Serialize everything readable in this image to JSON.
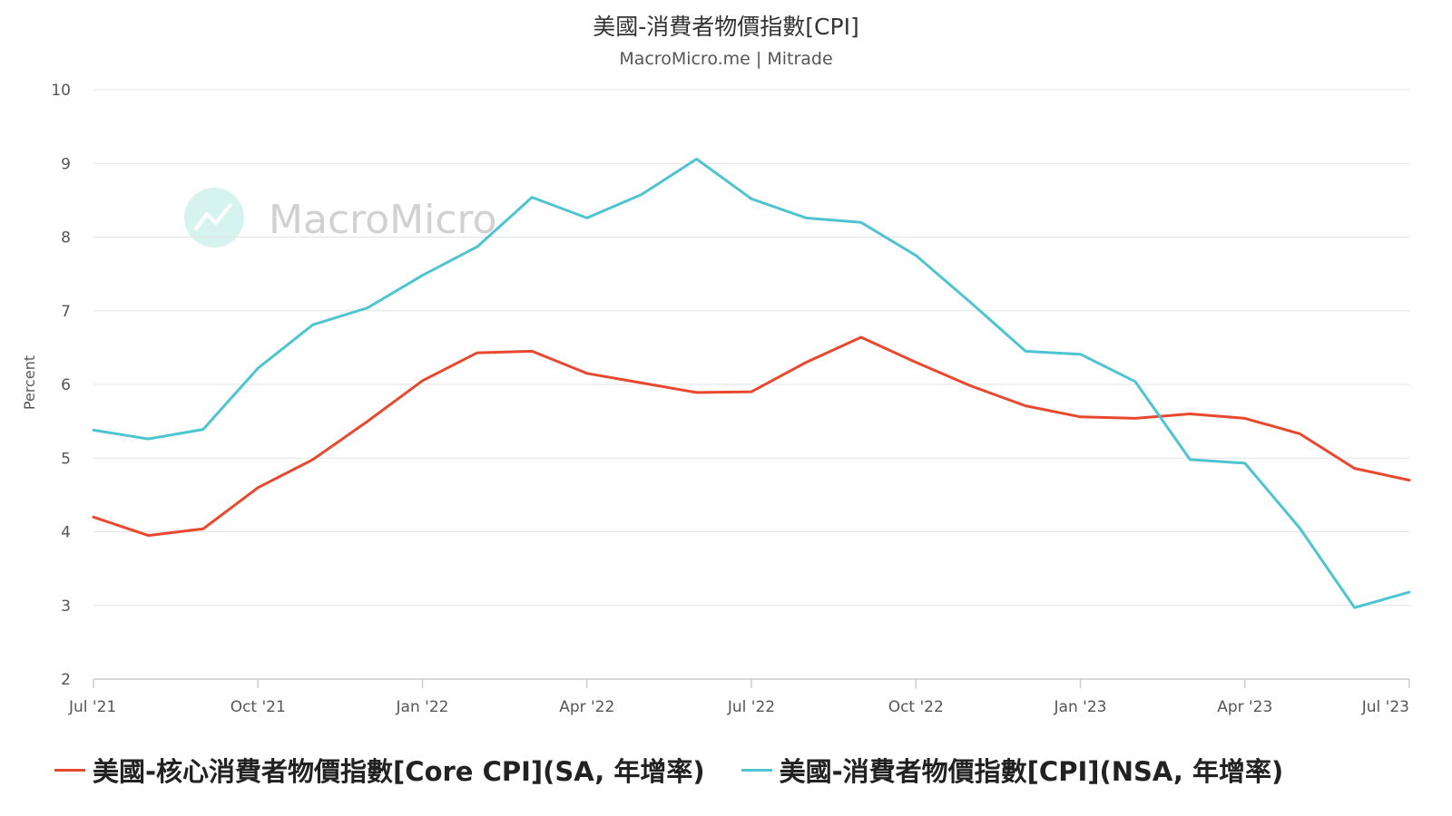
{
  "colors": {
    "core": "#e8492e",
    "cpi": "#4fc4d1",
    "grid": "#e3e3e3",
    "axis": "#cccccc",
    "text": "#555555"
  },
  "chart_data": {
    "type": "line",
    "title": "美國-消費者物價指數[CPI]",
    "subtitle": "MacroMicro.me | Mitrade",
    "watermark": "MacroMicro",
    "ylabel": "Percent",
    "ylim": [
      2,
      10
    ],
    "yticks": [
      "2",
      "3",
      "4",
      "5",
      "6",
      "7",
      "8",
      "9",
      "10"
    ],
    "xticks": [
      "Jul '21",
      "Oct '21",
      "Jan '22",
      "Apr '22",
      "Jul '22",
      "Oct '22",
      "Jan '23",
      "Apr '23",
      "Jul '23"
    ],
    "x": [
      "2021-07",
      "2021-08",
      "2021-09",
      "2021-10",
      "2021-11",
      "2021-12",
      "2022-01",
      "2022-02",
      "2022-03",
      "2022-04",
      "2022-05",
      "2022-06",
      "2022-07",
      "2022-08",
      "2022-09",
      "2022-10",
      "2022-11",
      "2022-12",
      "2023-01",
      "2023-02",
      "2023-03",
      "2023-04",
      "2023-05",
      "2023-06",
      "2023-07"
    ],
    "grid": true,
    "legend_position": "bottom",
    "series": [
      {
        "name": "美國-核心消費者物價指數[Core CPI](SA, 年增率)",
        "values": [
          4.2,
          3.95,
          4.04,
          4.6,
          4.98,
          5.5,
          6.05,
          6.43,
          6.45,
          6.15,
          6.02,
          5.89,
          5.9,
          6.3,
          6.64,
          6.3,
          5.98,
          5.71,
          5.56,
          5.54,
          5.6,
          5.54,
          5.33,
          4.86,
          4.7
        ]
      },
      {
        "name": "美國-消費者物價指數[CPI](NSA, 年增率)",
        "values": [
          5.38,
          5.26,
          5.39,
          6.22,
          6.81,
          7.04,
          7.48,
          7.87,
          8.54,
          8.26,
          8.58,
          9.06,
          8.52,
          8.26,
          8.2,
          7.75,
          7.11,
          6.45,
          6.41,
          6.04,
          4.98,
          4.93,
          4.05,
          2.97,
          3.18
        ]
      }
    ]
  }
}
